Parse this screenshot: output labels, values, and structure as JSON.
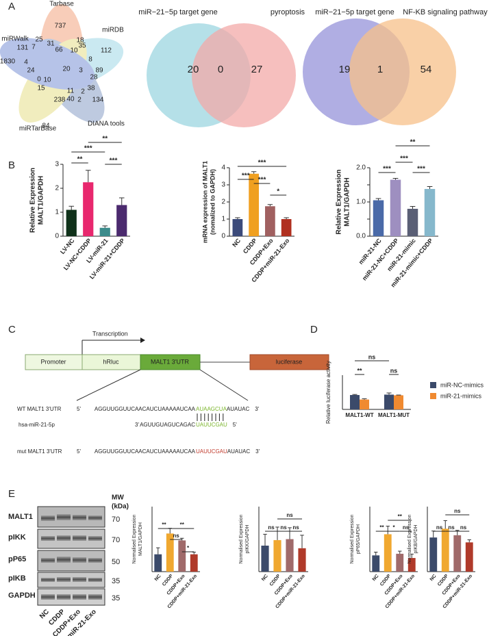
{
  "panel_labels": [
    "A",
    "B",
    "C",
    "D",
    "E"
  ],
  "venn": [
    {
      "sets": [
        "Tarbase",
        "miRDB",
        "DIANA tools",
        "miRTarBase",
        "miRWalk"
      ],
      "regions": [
        737,
        18,
        25,
        31,
        35,
        66,
        10,
        112,
        131,
        7,
        1830,
        4,
        24,
        20,
        8,
        3,
        89,
        28,
        0,
        10,
        15,
        38,
        2,
        11,
        40,
        238,
        2,
        134,
        84
      ]
    },
    {
      "sets": [
        "miR−21−5p target gene",
        "pyroptosis"
      ],
      "regions": [
        20,
        0,
        27
      ]
    },
    {
      "sets": [
        "miR−21−5p target gene",
        "NF-KB signaling pathway"
      ],
      "regions": [
        19,
        1,
        54
      ]
    }
  ],
  "construct": {
    "labels": [
      "Promoter",
      "hRluc",
      "MALT1 3'UTR",
      "luciferase"
    ],
    "arrow": "Transcription"
  },
  "sequences": [
    {
      "label": "WT MALT1 3'UTR",
      "parts": [
        "5'",
        "AGGUUGGUUCAACAUCUAAAAAUCAA",
        "AUAAGCUA",
        "AUAUAC",
        "3'"
      ]
    },
    {
      "label": "hsa-miR-21-5p",
      "parts": [
        "3'",
        "AGUUGUAGUCAGAC",
        "UAUUCGAU",
        "5'"
      ]
    },
    {
      "label": "mut MALT1 3'UTR",
      "parts": [
        "5'",
        "AGGUUGGUUCAACAUCUAAAAAUCAA",
        "UAUUCGAU",
        "AUAUAC",
        "3'"
      ]
    }
  ],
  "blot": {
    "proteins": [
      "MALT1",
      "pIKK",
      "pP65",
      "pIKB",
      "GAPDH"
    ],
    "mw_title": [
      "MW",
      "(kDa)"
    ],
    "mw": [
      70,
      70,
      50,
      35,
      35
    ],
    "lanes": [
      "NC",
      "CDDP",
      "CDDP+Exo",
      "CDDP+miR-21-Exo"
    ]
  },
  "chart_data": [
    {
      "type": "bar",
      "y_label": [
        "Relative Expression",
        "MALT1/GAPDH"
      ],
      "categories": [
        "LV-NC",
        "LV-NC+CDDP",
        "LV-miR-21",
        "LV-miR-21+CDDP"
      ],
      "values": [
        1.1,
        2.25,
        0.35,
        1.3
      ],
      "errors": [
        0.15,
        0.5,
        0.08,
        0.3
      ],
      "colors": [
        "#10321a",
        "#e8286e",
        "#3c8c8c",
        "#4b2a6e"
      ],
      "ylim": [
        0,
        3
      ],
      "yticks": [
        0,
        1,
        2,
        3
      ],
      "annotations": [
        "**",
        "***",
        "**",
        "***"
      ]
    },
    {
      "type": "bar",
      "y_label": [
        "mRNA expression of MALT1",
        "(nomalized to GAPDH)"
      ],
      "categories": [
        "NC",
        "CDDP",
        "CDDP+Exo",
        "CDDP+miR-21-Exo"
      ],
      "values": [
        1.0,
        3.65,
        1.75,
        1.0
      ],
      "errors": [
        0.08,
        0.12,
        0.1,
        0.08
      ],
      "colors": [
        "#3b4a7a",
        "#f0a020",
        "#a06060",
        "#b03020"
      ],
      "ylim": [
        0,
        4
      ],
      "yticks": [
        0,
        1,
        2,
        3,
        4
      ],
      "annotations": [
        "***",
        "***",
        "***",
        "*"
      ]
    },
    {
      "type": "bar",
      "y_label": [
        "Relative Expression",
        "MALT1/GAPDH"
      ],
      "categories": [
        "miR-21-NC",
        "miR-21-NC+CDDP",
        "miR-21-mimic",
        "miR-21-mimic+CDDP"
      ],
      "values": [
        1.05,
        1.65,
        0.8,
        1.38
      ],
      "errors": [
        0.05,
        0.04,
        0.07,
        0.07
      ],
      "colors": [
        "#4a6aa8",
        "#9e8fc0",
        "#5a5f75",
        "#86b8cc"
      ],
      "ylim": [
        0,
        2
      ],
      "yticks": [
        {
          "value": 0,
          "label": "0.0"
        },
        0.5,
        {
          "value": 1,
          "label": "1.0"
        },
        1.5,
        {
          "value": 2,
          "label": "2.0"
        }
      ],
      "annotations": [
        "**",
        "***",
        "***",
        "***"
      ]
    },
    {
      "type": "grouped_bar",
      "y_label": [
        "Relative luciferase activity"
      ],
      "categories": [
        "MALT1-WT",
        "MALT1-MUT"
      ],
      "series": [
        {
          "name": "miR-NC-mimics",
          "color": "#3b4a6a",
          "values": [
            1.05,
            1.08
          ],
          "errors": [
            0.04,
            0.12
          ]
        },
        {
          "name": "miR-21-mimics",
          "color": "#f08a30",
          "values": [
            0.72,
            1.03
          ],
          "errors": [
            0.06,
            0.02
          ]
        }
      ],
      "ylim": [
        0,
        2.5
      ],
      "annotations": [
        "ns",
        "**",
        "ns"
      ]
    },
    {
      "type": "bar",
      "y_label": [
        "Normalised Expression",
        "MALT1/GAPDH"
      ],
      "categories": [
        "NC",
        "CDDP",
        "CDDP+Exo",
        "CDDP+miR-21-Exo"
      ],
      "values": [
        0.4,
        0.88,
        0.72,
        0.4
      ],
      "errors": [
        0.15,
        0.12,
        0.05,
        0.05
      ],
      "colors": [
        "#3b4a6a",
        "#f0a830",
        "#a06a6a",
        "#b03a2a"
      ],
      "ylim": [
        0,
        1.5
      ],
      "annotations": [
        "**",
        "**",
        "ns",
        "*"
      ]
    },
    {
      "type": "bar",
      "y_label": [
        "Normalised Expression",
        "pIKK/GAPDH"
      ],
      "categories": [
        "NC",
        "CDDP",
        "CDDP+Exo",
        "CDDP+miR-21-Exo"
      ],
      "values": [
        0.8,
        0.97,
        1.0,
        0.72
      ],
      "errors": [
        0.35,
        0.4,
        0.35,
        0.4
      ],
      "colors": [
        "#3b4a6a",
        "#f0a830",
        "#a06a6a",
        "#b03a2a"
      ],
      "ylim": [
        0,
        2
      ],
      "annotations": [
        "ns",
        "ns",
        "ns",
        "ns"
      ]
    },
    {
      "type": "bar",
      "y_label": [
        "Normalised Expression",
        "pP65/GAPDH"
      ],
      "categories": [
        "NC",
        "CDDP",
        "CDDP+Exo",
        "CDDP+miR-21-Exo"
      ],
      "values": [
        0.5,
        1.15,
        0.55,
        0.42
      ],
      "errors": [
        0.1,
        0.25,
        0.08,
        0.12
      ],
      "colors": [
        "#3b4a6a",
        "#f0a830",
        "#a06a6a",
        "#b03a2a"
      ],
      "ylim": [
        0,
        2
      ],
      "annotations": [
        "**",
        "*",
        "ns",
        "**"
      ]
    },
    {
      "type": "bar",
      "y_label": [
        "Normalised Expression",
        "pIKB/GAPDH"
      ],
      "categories": [
        "NC",
        "CDDP",
        "CDDP+Exo",
        "CDDP+miR-21-Exo"
      ],
      "values": [
        1.05,
        1.32,
        1.12,
        0.9
      ],
      "errors": [
        0.2,
        0.25,
        0.15,
        0.08
      ],
      "colors": [
        "#3b4a6a",
        "#f0a830",
        "#a06a6a",
        "#b03a2a"
      ],
      "ylim": [
        0,
        2
      ],
      "annotations": [
        "ns",
        "ns",
        "ns",
        "ns"
      ]
    }
  ]
}
